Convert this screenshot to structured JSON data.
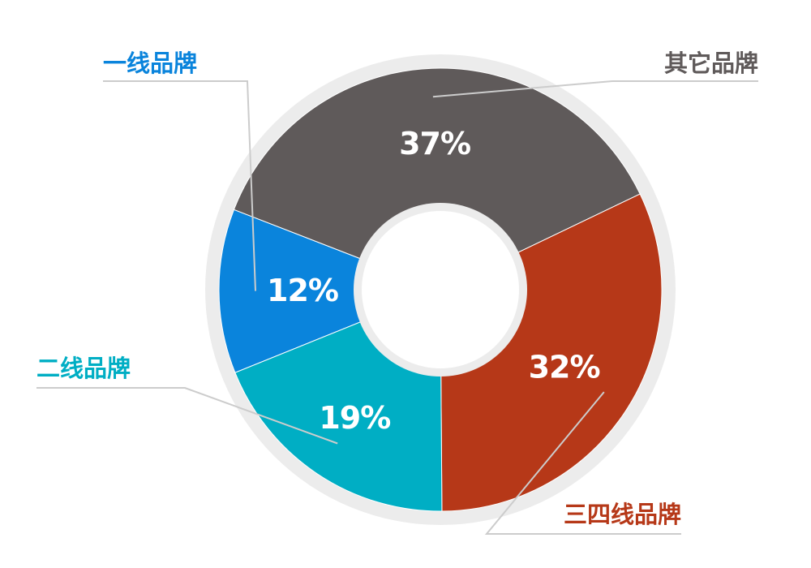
{
  "chart_data": {
    "type": "pie",
    "variant": "donut",
    "title": "",
    "slices": [
      {
        "label": "一线品牌",
        "value": 12,
        "display": "12%",
        "color": "#0a84dc"
      },
      {
        "label": "其它品牌",
        "value": 37,
        "display": "37%",
        "color": "#5f5a5a"
      },
      {
        "label": "三四线品牌",
        "value": 32,
        "display": "32%",
        "color": "#b63818"
      },
      {
        "label": "二线品牌",
        "value": 19,
        "display": "19%",
        "color": "#00aec4"
      }
    ],
    "ring_color": "#ececec",
    "leader_color": "#cccccc"
  }
}
